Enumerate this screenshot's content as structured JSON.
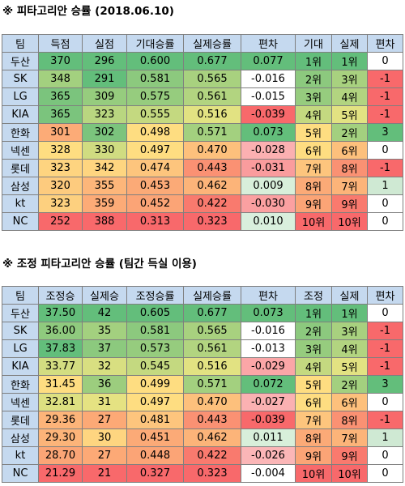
{
  "table1": {
    "title": "※ 피타고리안 승률 (2018.06.10)",
    "headers": [
      "팀",
      "득점",
      "실점",
      "기대승률",
      "실제승률",
      "편차",
      "기대",
      "실제",
      "편차"
    ],
    "rows": [
      {
        "cells": [
          "두산",
          "370",
          "296",
          "0.600",
          "0.677",
          "0.077",
          "1위",
          "1위",
          "0"
        ],
        "colors": [
          "#c5d9ef",
          "#63be7b",
          "#63be7b",
          "#63be7b",
          "#63be7b",
          "#63be7b",
          "#63be7b",
          "#63be7b",
          "#ffffff"
        ]
      },
      {
        "cells": [
          "SK",
          "348",
          "291",
          "0.581",
          "0.565",
          "-0.016",
          "2위",
          "3위",
          "-1"
        ],
        "colors": [
          "#c5d9ef",
          "#a3d07f",
          "#63be7b",
          "#8cc97e",
          "#a8d17f",
          "#ffffff",
          "#8cc97e",
          "#a8d17f",
          "#f8696b"
        ]
      },
      {
        "cells": [
          "LG",
          "365",
          "309",
          "0.575",
          "0.561",
          "-0.015",
          "3위",
          "4위",
          "-1"
        ],
        "colors": [
          "#c5d9ef",
          "#7bc47d",
          "#96cc7e",
          "#96cc7e",
          "#b2d480",
          "#ffffff",
          "#96cc7e",
          "#b2d480",
          "#f8696b"
        ]
      },
      {
        "cells": [
          "KIA",
          "365",
          "323",
          "0.555",
          "0.516",
          "-0.039",
          "4위",
          "5위",
          "-1"
        ],
        "colors": [
          "#c5d9ef",
          "#7bc47d",
          "#b9d680",
          "#c4d980",
          "#e2e282",
          "#f8696b",
          "#c4d980",
          "#e2e282",
          "#f8696b"
        ]
      },
      {
        "cells": [
          "한화",
          "301",
          "302",
          "0.498",
          "0.571",
          "0.073",
          "5위",
          "2위",
          "3"
        ],
        "colors": [
          "#c5d9ef",
          "#fcab77",
          "#7bc47d",
          "#fedd81",
          "#a3d07f",
          "#63be7b",
          "#fedd81",
          "#a3d07f",
          "#63be7b"
        ]
      },
      {
        "cells": [
          "넥센",
          "328",
          "330",
          "0.497",
          "0.470",
          "-0.028",
          "6위",
          "6위",
          "0"
        ],
        "colors": [
          "#c5d9ef",
          "#fedd81",
          "#d0dc81",
          "#fedd81",
          "#fdc07c",
          "#fbb0b1",
          "#fedd81",
          "#fdc07c",
          "#ffffff"
        ]
      },
      {
        "cells": [
          "롯데",
          "323",
          "342",
          "0.474",
          "0.443",
          "-0.031",
          "7위",
          "8위",
          "-1"
        ],
        "colors": [
          "#c5d9ef",
          "#fed480",
          "#fed580",
          "#fdc57d",
          "#fa9173",
          "#fa9c9d",
          "#fdc57d",
          "#fa9173",
          "#f8696b"
        ]
      },
      {
        "cells": [
          "삼성",
          "320",
          "355",
          "0.453",
          "0.462",
          "0.009",
          "8위",
          "7위",
          "1"
        ],
        "colors": [
          "#c5d9ef",
          "#fdcb7e",
          "#fdb67a",
          "#fbaa77",
          "#fcb479",
          "#d8efda",
          "#fbaa77",
          "#fcb479",
          "#cfe9d3"
        ]
      },
      {
        "cells": [
          "kt",
          "323",
          "359",
          "0.452",
          "0.422",
          "-0.030",
          "9위",
          "9위",
          "0"
        ],
        "colors": [
          "#c5d9ef",
          "#fdd07f",
          "#fcab77",
          "#fba476",
          "#f97a6e",
          "#fba0a1",
          "#fba476",
          "#f97a6e",
          "#ffffff"
        ]
      },
      {
        "cells": [
          "NC",
          "252",
          "388",
          "0.313",
          "0.323",
          "0.010",
          "10위",
          "10위",
          "0"
        ],
        "colors": [
          "#c5d9ef",
          "#f8696b",
          "#f8696b",
          "#f8696b",
          "#f8696b",
          "#d9efdd",
          "#f8696b",
          "#f8696b",
          "#ffffff"
        ]
      }
    ]
  },
  "table2": {
    "title": "※ 조정 피타고리안 승률 (팀간 득실 이용)",
    "headers": [
      "팀",
      "조정승",
      "실제승",
      "조정승률",
      "실제승률",
      "편차",
      "조정",
      "실제",
      "편차"
    ],
    "rows": [
      {
        "cells": [
          "두산",
          "37.50",
          "42",
          "0.605",
          "0.677",
          "0.073",
          "1위",
          "1위",
          "0"
        ],
        "colors": [
          "#c5d9ef",
          "#63be7b",
          "#63be7b",
          "#63be7b",
          "#63be7b",
          "#63be7b",
          "#63be7b",
          "#63be7b",
          "#ffffff"
        ]
      },
      {
        "cells": [
          "SK",
          "36.00",
          "35",
          "0.581",
          "0.565",
          "-0.016",
          "2위",
          "3위",
          "-1"
        ],
        "colors": [
          "#c5d9ef",
          "#8fca7e",
          "#a3d07f",
          "#8cc97e",
          "#a8d17f",
          "#ffffff",
          "#8cc97e",
          "#a8d17f",
          "#f8696b"
        ]
      },
      {
        "cells": [
          "LG",
          "37.83",
          "37",
          "0.573",
          "0.561",
          "-0.013",
          "3위",
          "4위",
          "-1"
        ],
        "colors": [
          "#c5d9ef",
          "#63be7b",
          "#8cc97e",
          "#96cc7e",
          "#b2d480",
          "#ffffff",
          "#96cc7e",
          "#b2d480",
          "#f8696b"
        ]
      },
      {
        "cells": [
          "KIA",
          "33.77",
          "32",
          "0.545",
          "0.516",
          "-0.029",
          "4위",
          "5위",
          "-1"
        ],
        "colors": [
          "#c5d9ef",
          "#d3dd81",
          "#d8df81",
          "#c4d980",
          "#e2e282",
          "#fba6a7",
          "#c4d980",
          "#e2e282",
          "#f8696b"
        ]
      },
      {
        "cells": [
          "한화",
          "31.45",
          "36",
          "0.499",
          "0.571",
          "0.072",
          "5위",
          "2위",
          "3"
        ],
        "colors": [
          "#c5d9ef",
          "#fedd81",
          "#9ccd7e",
          "#fedd81",
          "#a3d07f",
          "#63be7b",
          "#fedd81",
          "#a3d07f",
          "#63be7b"
        ]
      },
      {
        "cells": [
          "넥센",
          "32.81",
          "31",
          "0.497",
          "0.470",
          "-0.027",
          "6위",
          "6위",
          "0"
        ],
        "colors": [
          "#c5d9ef",
          "#dde081",
          "#e5e282",
          "#fedd81",
          "#fdc07c",
          "#fbb1b2",
          "#fedd81",
          "#fdc07c",
          "#ffffff"
        ]
      },
      {
        "cells": [
          "롯데",
          "29.36",
          "27",
          "0.481",
          "0.443",
          "-0.039",
          "7위",
          "8위",
          "-1"
        ],
        "colors": [
          "#c5d9ef",
          "#fcb479",
          "#fca976",
          "#fdc57d",
          "#fa9173",
          "#f8696b",
          "#fdc57d",
          "#fa9173",
          "#f8696b"
        ]
      },
      {
        "cells": [
          "삼성",
          "29.30",
          "30",
          "0.451",
          "0.462",
          "0.011",
          "8위",
          "7위",
          "1"
        ],
        "colors": [
          "#c5d9ef",
          "#fcb479",
          "#fed580",
          "#fbaa77",
          "#fcb479",
          "#d8efda",
          "#fbaa77",
          "#fcb479",
          "#cfe9d3"
        ]
      },
      {
        "cells": [
          "kt",
          "28.70",
          "27",
          "0.448",
          "0.422",
          "-0.026",
          "9위",
          "9위",
          "0"
        ],
        "colors": [
          "#c5d9ef",
          "#fba576",
          "#fca976",
          "#fba476",
          "#f97a6e",
          "#fbb6b7",
          "#fba476",
          "#f97a6e",
          "#ffffff"
        ]
      },
      {
        "cells": [
          "NC",
          "21.29",
          "21",
          "0.327",
          "0.323",
          "-0.004",
          "10위",
          "10위",
          "0"
        ],
        "colors": [
          "#c5d9ef",
          "#f8696b",
          "#f8696b",
          "#f8696b",
          "#f8696b",
          "#ffffff",
          "#f8696b",
          "#f8696b",
          "#ffffff"
        ]
      }
    ]
  }
}
